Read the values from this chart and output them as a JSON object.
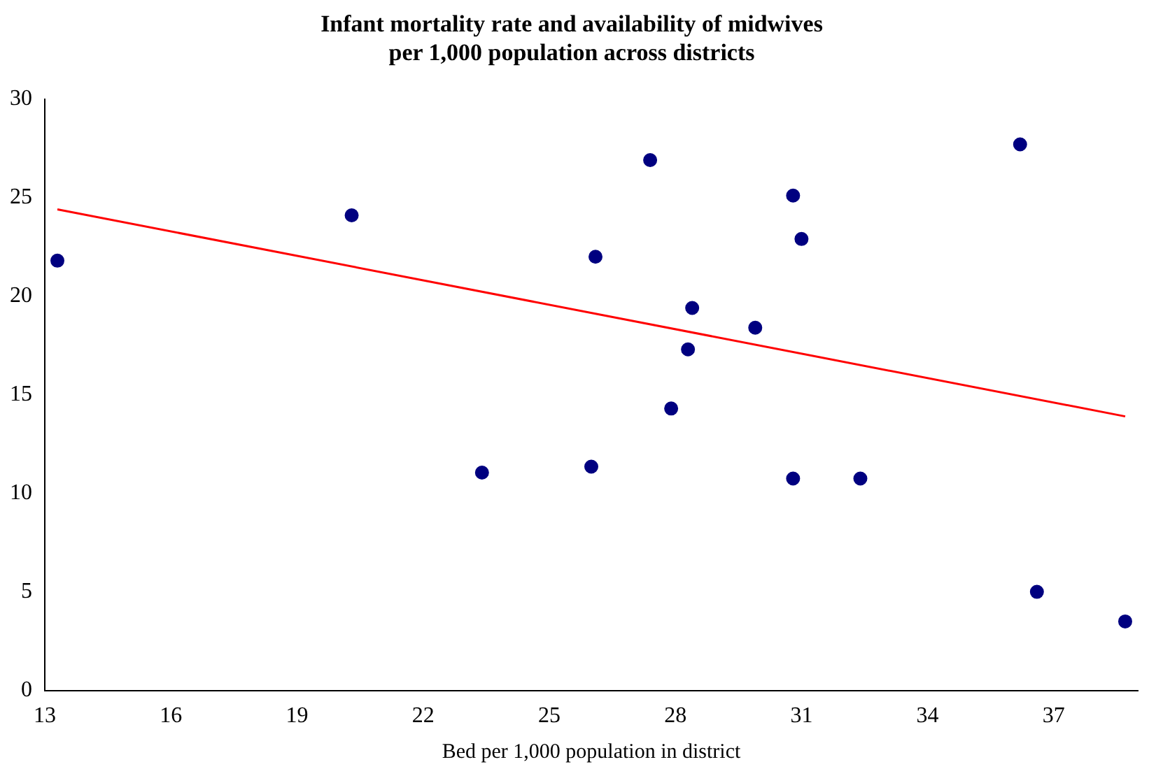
{
  "chart_data": {
    "type": "scatter",
    "title": "Infant mortality rate and availability of midwives\nper 1,000 population across districts",
    "xlabel": "Bed per 1,000 population in district",
    "xlim": [
      13,
      39
    ],
    "xticks": [
      13,
      16,
      19,
      22,
      25,
      28,
      31,
      34,
      37
    ],
    "ylim": [
      0,
      30
    ],
    "yticks": [
      0,
      5,
      10,
      15,
      20,
      25,
      30
    ],
    "grid": false,
    "legend": false,
    "series": [
      {
        "marker": "circle",
        "color": "#000080",
        "x": [
          13.3,
          20.3,
          23.4,
          26.1,
          26.0,
          27.4,
          27.9,
          28.3,
          28.4,
          29.9,
          30.8,
          31.0,
          30.8,
          32.4,
          36.2,
          36.6,
          38.7
        ],
        "values": [
          21.8,
          24.1,
          11.05,
          22.0,
          11.35,
          26.9,
          14.3,
          17.3,
          19.4,
          18.4,
          25.1,
          22.9,
          10.75,
          10.75,
          27.7,
          5.0,
          3.5
        ]
      },
      {
        "type": "line",
        "marker": "none",
        "color": "#ff0000",
        "x": [
          13.3,
          38.7
        ],
        "values": [
          24.4,
          13.9
        ]
      }
    ]
  }
}
